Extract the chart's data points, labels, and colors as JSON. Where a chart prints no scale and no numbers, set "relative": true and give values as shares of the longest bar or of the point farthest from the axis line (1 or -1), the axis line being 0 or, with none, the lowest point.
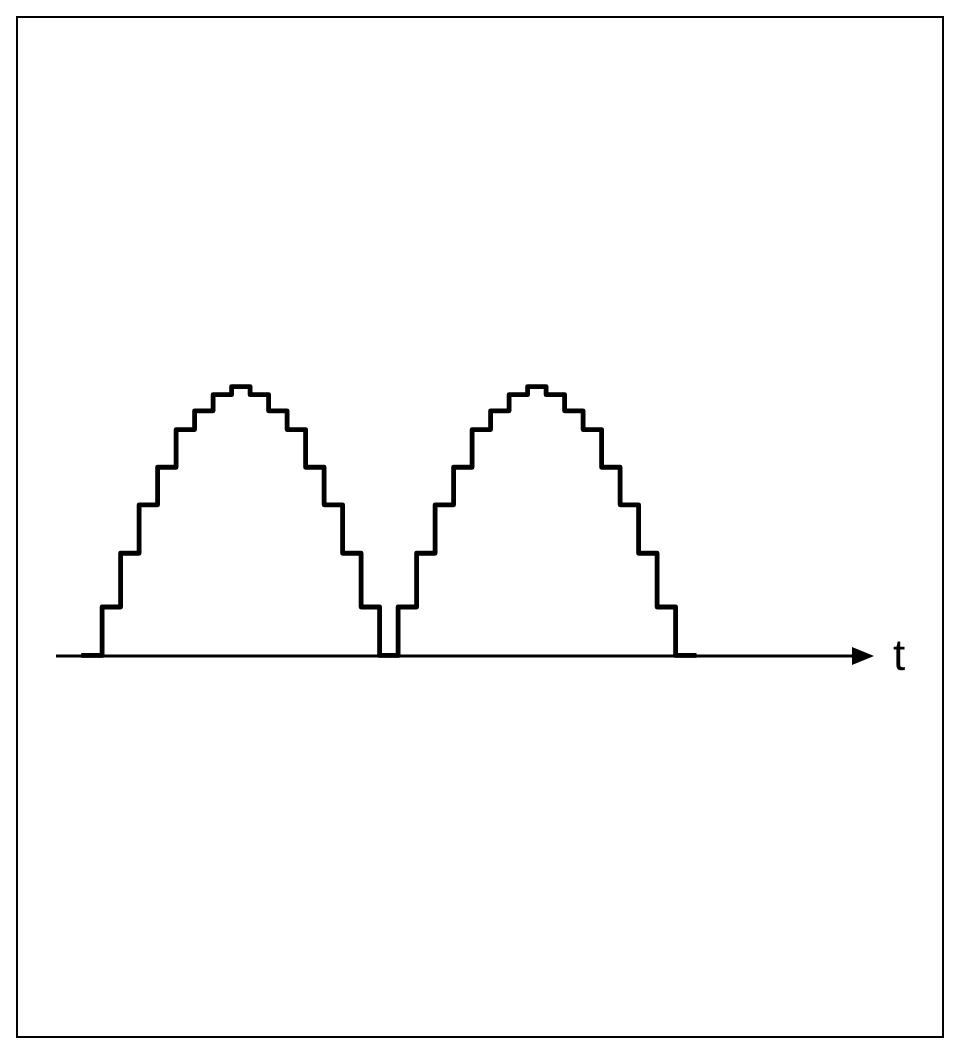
{
  "chart_data": {
    "type": "step",
    "xlabel": "t",
    "relative": true,
    "color": "#000000",
    "categories": [
      null,
      null,
      null,
      null,
      null,
      null,
      null,
      null,
      null,
      null,
      null,
      null,
      null,
      null,
      null,
      null,
      null,
      null,
      null,
      null,
      null,
      null,
      null,
      null,
      null,
      null,
      null,
      null,
      null,
      null,
      null,
      null,
      null,
      null
    ],
    "values": [
      0,
      0.18,
      0.38,
      0.56,
      0.7,
      0.84,
      0.91,
      0.97,
      1,
      0.97,
      0.91,
      0.84,
      0.7,
      0.56,
      0.38,
      0.18,
      0,
      0.18,
      0.38,
      0.56,
      0.7,
      0.84,
      0.91,
      0.97,
      1,
      0.97,
      0.91,
      0.84,
      0.7,
      0.56,
      0.38,
      0.18,
      0,
      0
    ]
  }
}
